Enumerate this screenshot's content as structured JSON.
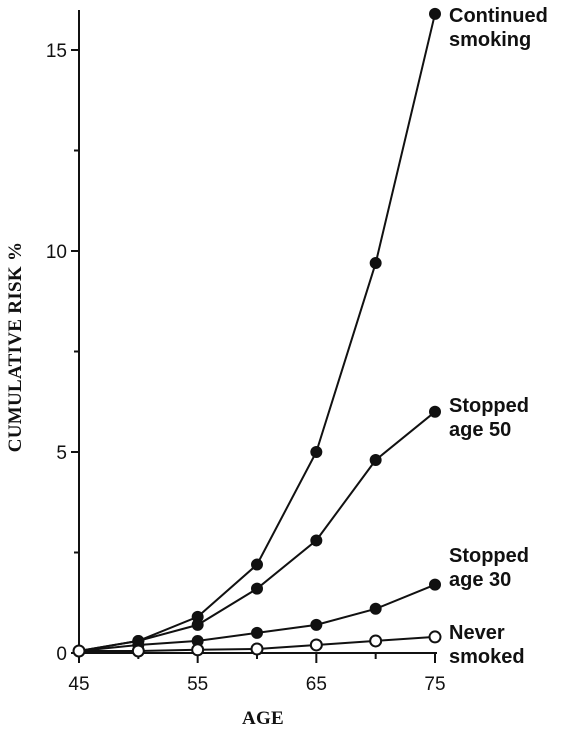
{
  "chart_data": {
    "type": "line",
    "xlabel": "AGE",
    "ylabel": "CUMULATIVE RISK %",
    "xlim": [
      45,
      75
    ],
    "ylim": [
      0,
      16
    ],
    "xticks": [
      "45",
      "55",
      "65",
      "75"
    ],
    "yticks": [
      "0",
      "5",
      "10",
      "15"
    ],
    "grid": false,
    "legend": "none",
    "x": [
      45,
      50,
      55,
      60,
      65,
      70,
      75
    ],
    "series": [
      {
        "name": "Continued smoking",
        "label_lines": [
          "Continued",
          "smoking"
        ],
        "values": [
          0.05,
          0.3,
          0.9,
          2.2,
          5.0,
          9.7,
          15.9
        ],
        "marker": "filled-circle"
      },
      {
        "name": "Stopped age 50",
        "label_lines": [
          "Stopped",
          "age 50"
        ],
        "values": [
          0.05,
          0.3,
          0.7,
          1.6,
          2.8,
          4.8,
          6.0
        ],
        "marker": "filled-circle"
      },
      {
        "name": "Stopped age 30",
        "label_lines": [
          "Stopped",
          "age 30"
        ],
        "values": [
          0.05,
          0.2,
          0.3,
          0.5,
          0.7,
          1.1,
          1.7
        ],
        "marker": "filled-circle"
      },
      {
        "name": "Never smoked",
        "label_lines": [
          "Never",
          "smoked"
        ],
        "values": [
          0.05,
          0.05,
          0.08,
          0.1,
          0.2,
          0.3,
          0.4
        ],
        "marker": "open-circle"
      }
    ]
  }
}
